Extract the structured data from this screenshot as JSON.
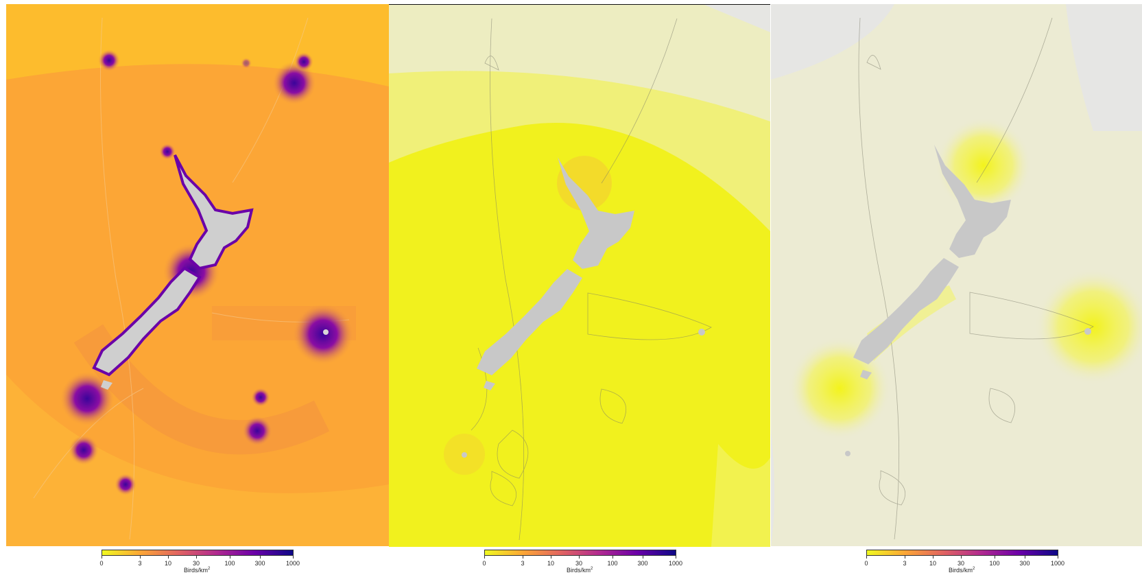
{
  "legend": {
    "ticks": [
      "0",
      "3",
      "10",
      "30",
      "100",
      "300",
      "1000"
    ],
    "title_text": "Birds/km",
    "title_exponent": "2",
    "colors": [
      "#f0f921",
      "#fca636",
      "#e16462",
      "#b12a90",
      "#6a00a8",
      "#0d0887"
    ]
  },
  "panels": [
    {
      "id": "panel-1",
      "name": "density-map-1",
      "background": "#fdb42f"
    },
    {
      "id": "panel-2",
      "name": "density-map-2",
      "background": "#f1f11e"
    },
    {
      "id": "panel-3",
      "name": "density-map-3",
      "background": "#ecebd3"
    }
  ]
}
